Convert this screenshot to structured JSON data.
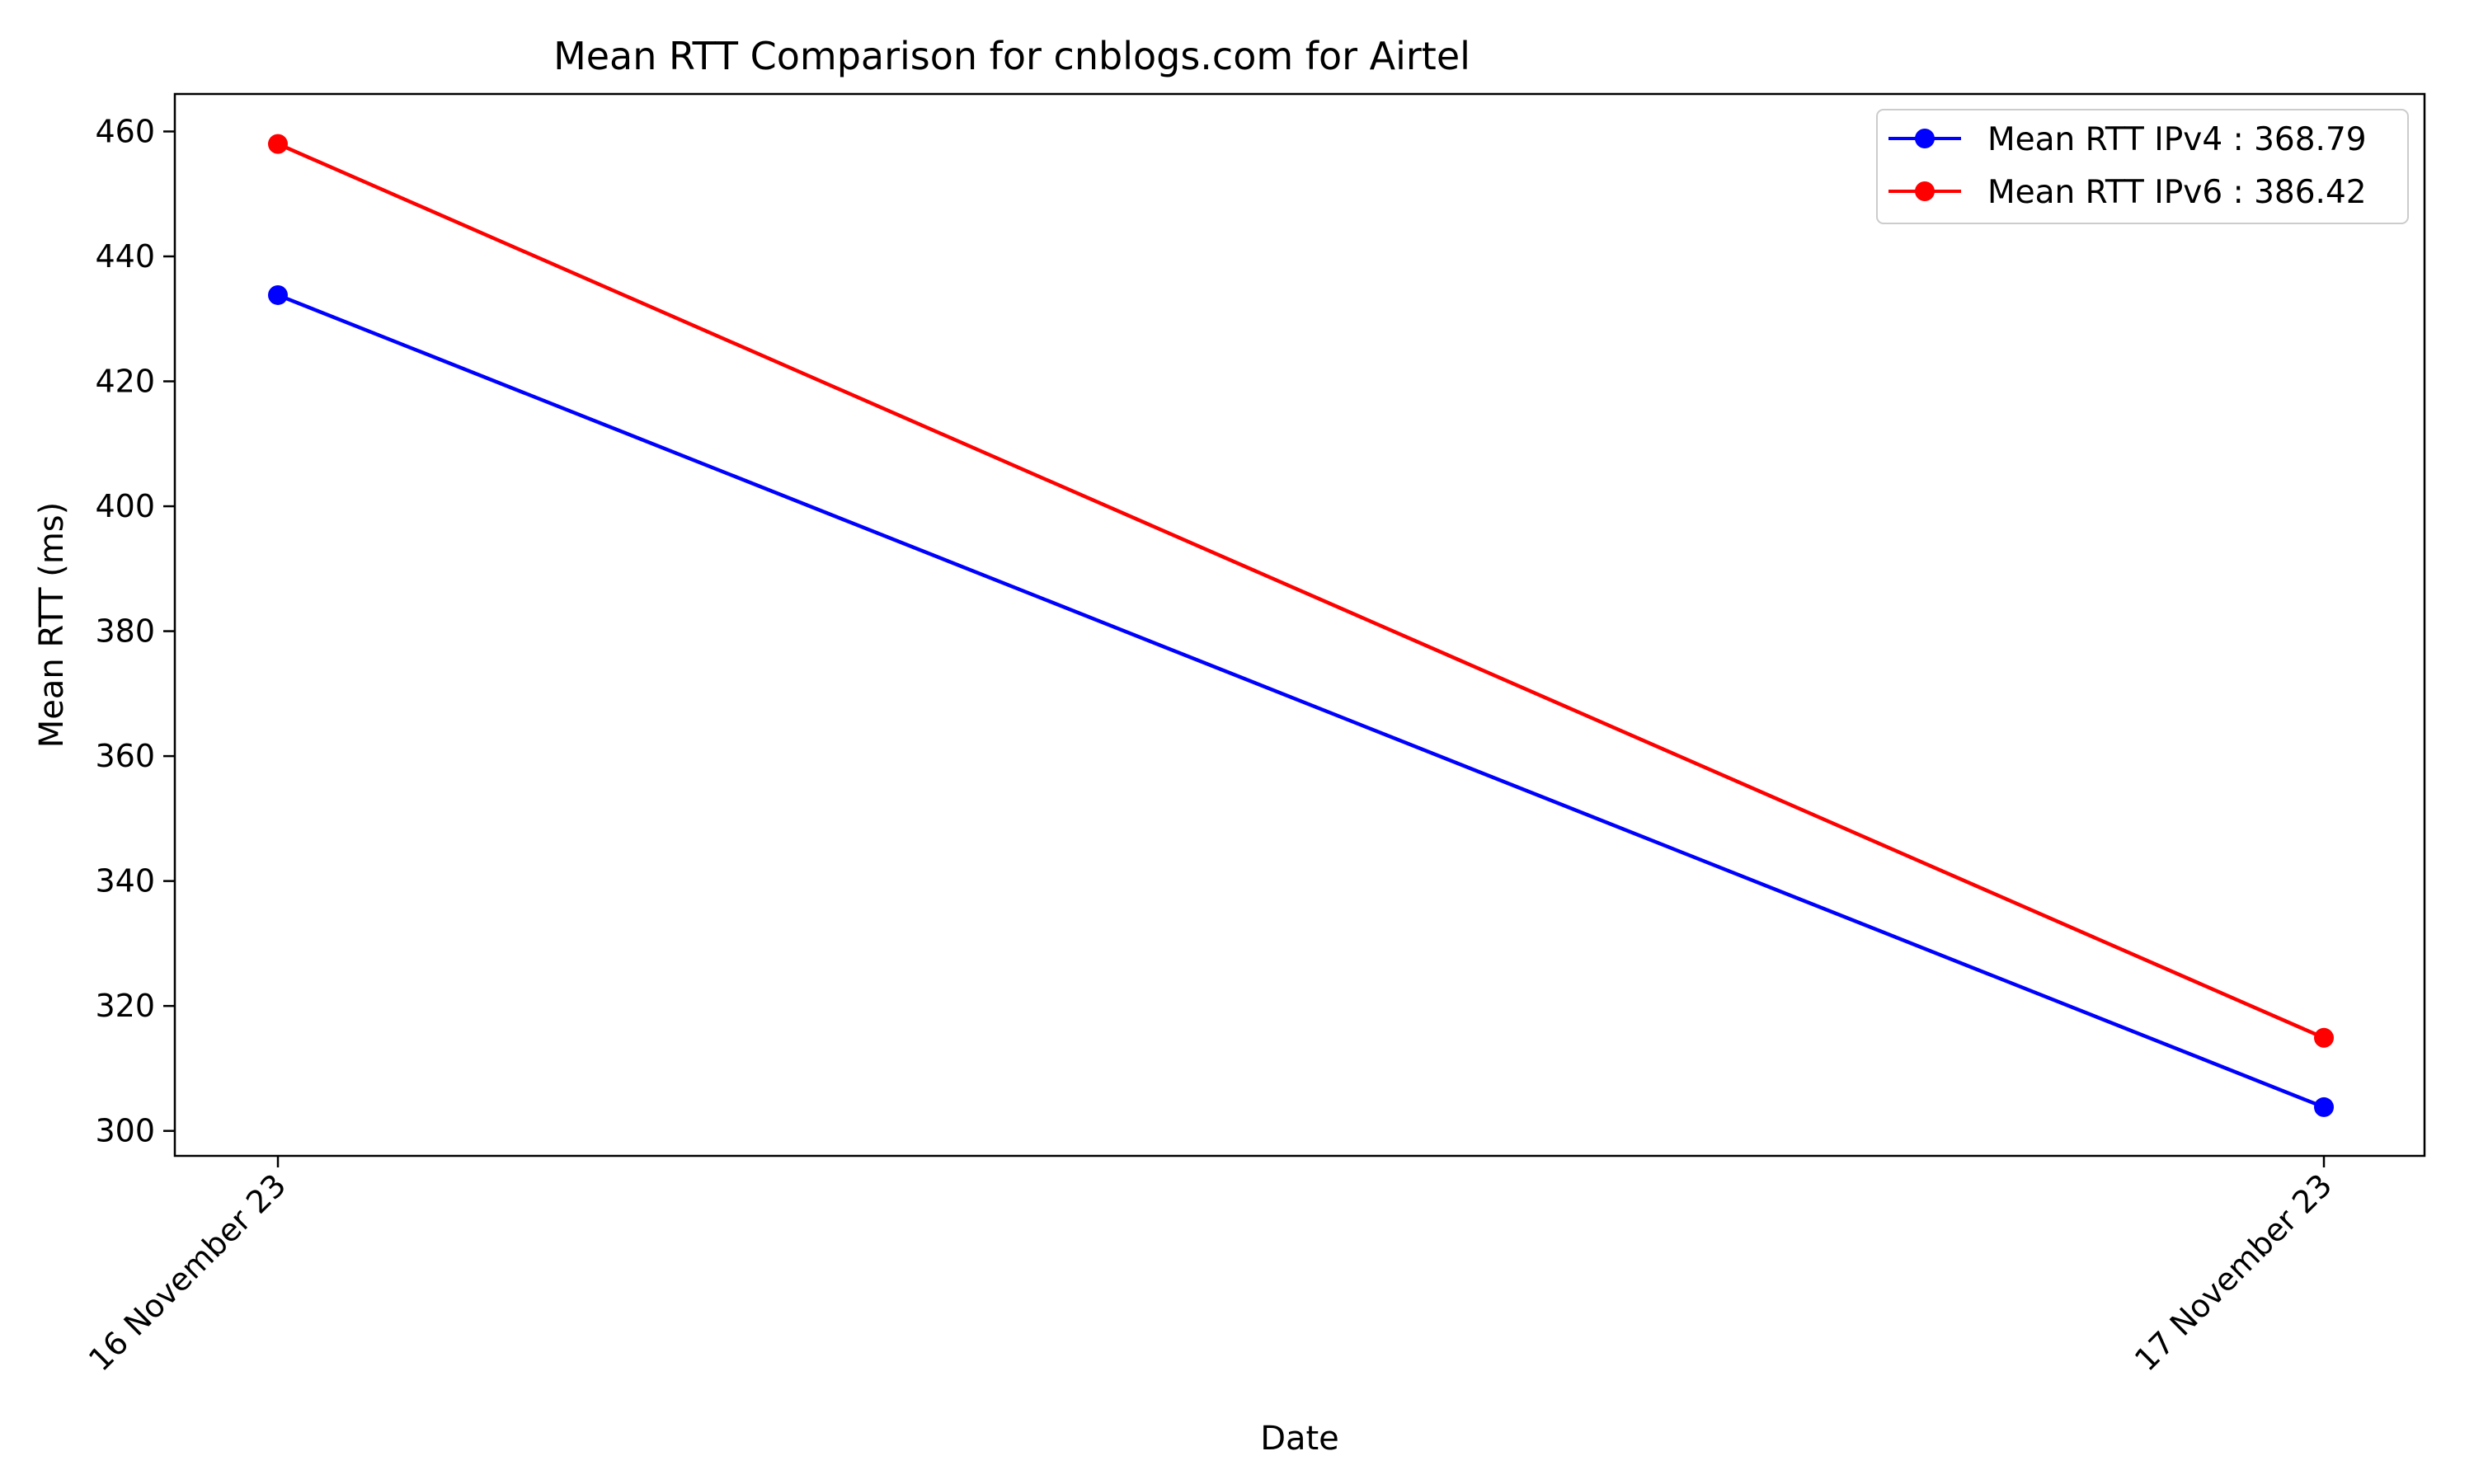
{
  "chart_data": {
    "type": "line",
    "title": "Mean RTT Comparison for cnblogs.com for Airtel",
    "xlabel": "Date",
    "ylabel": "Mean RTT (ms)",
    "categories": [
      "16 November 23",
      "17 November 23"
    ],
    "y_ticks": [
      300,
      320,
      340,
      360,
      380,
      400,
      420,
      440,
      460
    ],
    "ylim": [
      296,
      466
    ],
    "grid": false,
    "legend_position": "top-right",
    "series": [
      {
        "name": "Mean RTT IPv4 : 368.79",
        "color": "#0000ff",
        "marker": "circle",
        "values": [
          433.8,
          303.8
        ]
      },
      {
        "name": "Mean RTT IPv6 : 386.42",
        "color": "#ff0000",
        "marker": "circle",
        "values": [
          458.0,
          314.9
        ]
      }
    ]
  }
}
